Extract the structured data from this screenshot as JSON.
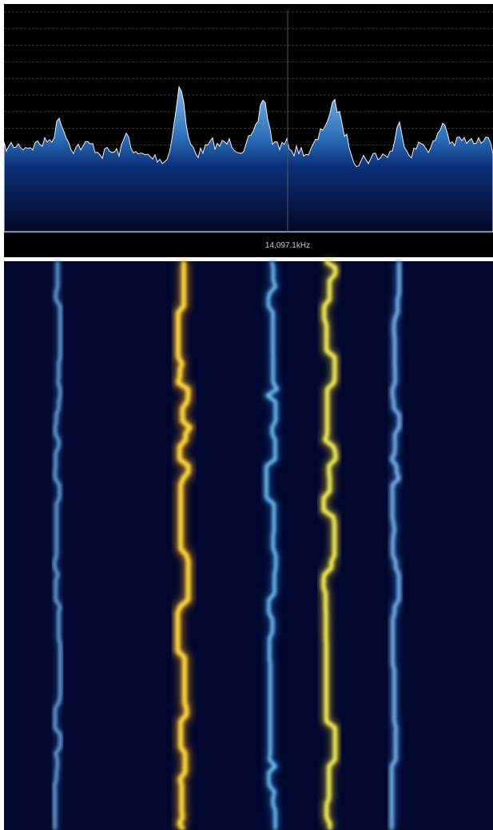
{
  "frequency_label": "14,097.1kHz"
}
